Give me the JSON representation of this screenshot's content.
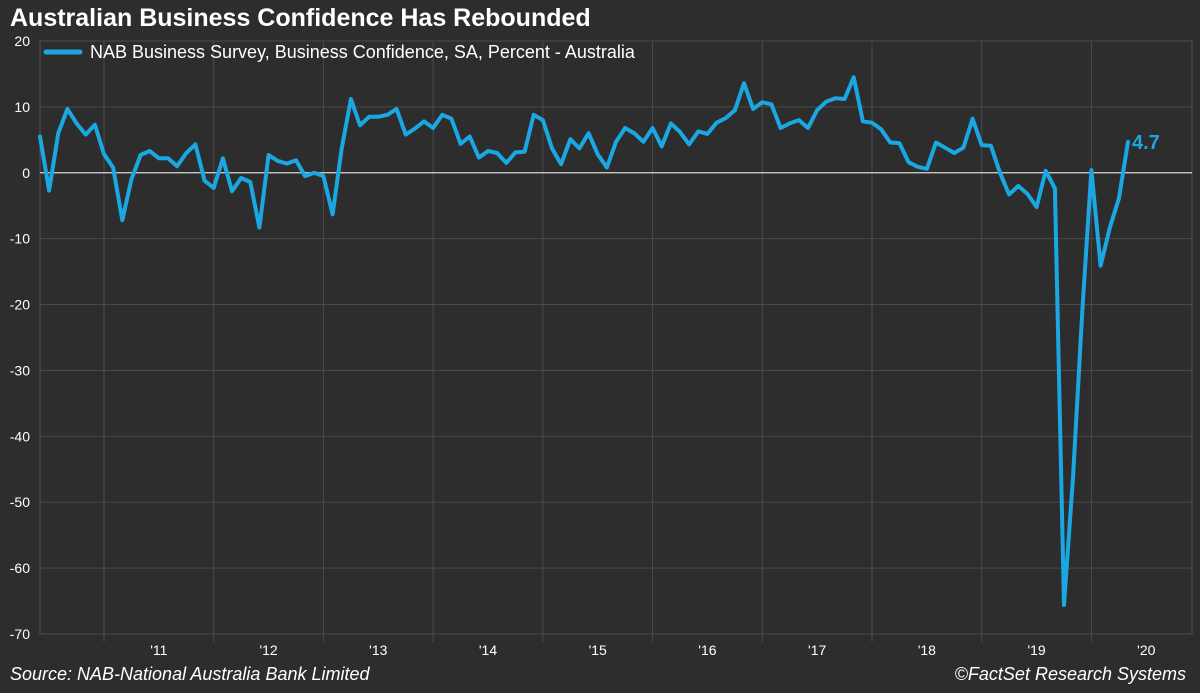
{
  "chart_data": {
    "type": "line",
    "title": "Australian Business Confidence Has Rebounded",
    "legend": "NAB Business Survey, Business Confidence, SA, Percent - Australia",
    "legend_position": "top-left",
    "source": "Source: NAB-National Australia Bank Limited",
    "copyright": "©FactSet Research Systems",
    "last_value_label": "4.7",
    "ylim": [
      -70,
      20
    ],
    "y_ticks": [
      20,
      10,
      0,
      -10,
      -20,
      -30,
      -40,
      -50,
      -60,
      -70
    ],
    "y_tick_labels": [
      "20",
      "10",
      "0",
      "-10",
      "-20",
      "-30",
      "-40",
      "-50",
      "-60",
      "-70"
    ],
    "x_range": [
      "2010-06",
      "2020-12"
    ],
    "x_year_labels": [
      "'11",
      "'12",
      "'13",
      "'14",
      "'15",
      "'16",
      "'17",
      "'18",
      "'19",
      "'20"
    ],
    "series": [
      {
        "name": "NAB Business Survey, Business Confidence, SA, Percent - Australia",
        "color": "#1aa7e2",
        "start": "2010-06",
        "frequency": "monthly",
        "values": [
          5.5,
          -2.7,
          6,
          9.7,
          7.5,
          5.8,
          7.3,
          2.8,
          0.8,
          -7.2,
          -1,
          2.7,
          3.3,
          2.2,
          2.2,
          1,
          3,
          4.3,
          -1.2,
          -2.3,
          2.2,
          -2.8,
          -0.8,
          -1.4,
          -8.3,
          2.7,
          1.8,
          1.4,
          1.9,
          -0.5,
          0,
          -0.5,
          -6.3,
          3.7,
          11.2,
          7.2,
          8.5,
          8.5,
          8.8,
          9.7,
          5.8,
          6.7,
          7.8,
          6.8,
          8.8,
          8.2,
          4.4,
          5.5,
          2.3,
          3.3,
          3,
          1.5,
          3.1,
          3.2,
          8.8,
          8,
          3.7,
          1.3,
          5.1,
          3.7,
          6,
          2.8,
          0.8,
          4.7,
          6.8,
          6,
          4.7,
          6.8,
          4,
          7.5,
          6.2,
          4.3,
          6.3,
          5.9,
          7.6,
          8.3,
          9.5,
          13.6,
          9.7,
          10.7,
          10.4,
          6.8,
          7.5,
          8,
          6.8,
          9.5,
          10.8,
          11.3,
          11.2,
          14.5,
          7.8,
          7.6,
          6.6,
          4.6,
          4.5,
          1.6,
          0.9,
          0.6,
          4.6,
          3.8,
          3,
          3.8,
          8.2,
          4.2,
          4.1,
          0,
          -3.3,
          -2,
          -3.2,
          -5.2,
          0.3,
          -2.4,
          -65.6,
          -46,
          -21,
          0.4,
          -14.1,
          -8.4,
          -3.9,
          4.7
        ]
      }
    ]
  }
}
